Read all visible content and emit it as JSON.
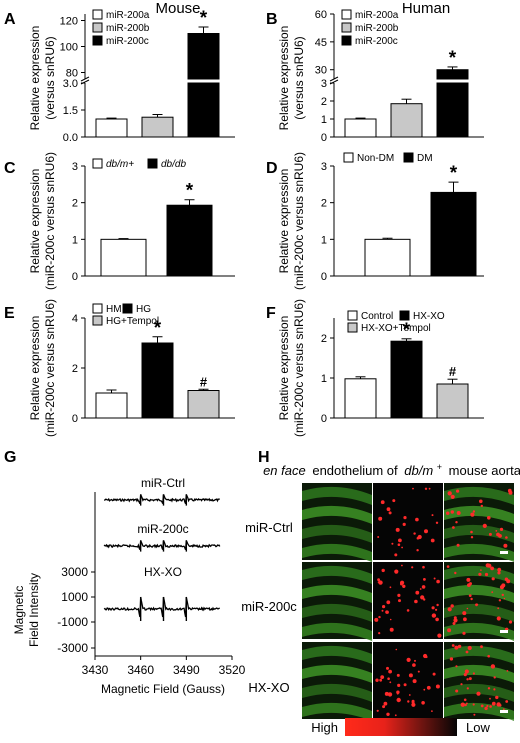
{
  "columns": {
    "left": "Mouse",
    "right": "Human"
  },
  "micro": {
    "title_prefix": "en face",
    "title_rest": "endothelium of",
    "title_italic": "db/m",
    "title_sup": "+",
    "title_suffix": "mouse aorta",
    "rows": [
      "miR-Ctrl",
      "miR-200c",
      "HX-XO"
    ],
    "colorbar": {
      "high": "High",
      "low": "Low"
    }
  },
  "chart_data": [
    {
      "panel": "A",
      "type": "bar",
      "axis_break": true,
      "ylabel": "Relative expression (versus snRU6)",
      "categories": [
        "miR-200a",
        "miR-200b",
        "miR-200c"
      ],
      "values": [
        1.0,
        1.1,
        110
      ],
      "errors": [
        0.05,
        0.15,
        5
      ],
      "fills": [
        "#ffffff",
        "#c8c8c8",
        "#000000"
      ],
      "lower_ticks": [
        "0.0",
        "1.5",
        "3.0"
      ],
      "upper_ticks": [
        "80",
        "100",
        "120"
      ],
      "lower_ylim": [
        0,
        3
      ],
      "upper_ylim": [
        75,
        125
      ],
      "annotations": [
        "",
        "",
        "*"
      ]
    },
    {
      "panel": "B",
      "type": "bar",
      "axis_break": true,
      "ylabel": "Relative expression (versus snRU6)",
      "categories": [
        "miR-200a",
        "miR-200b",
        "miR-200c"
      ],
      "values": [
        1.0,
        1.85,
        30
      ],
      "errors": [
        0.05,
        0.25,
        1.5
      ],
      "fills": [
        "#ffffff",
        "#c8c8c8",
        "#000000"
      ],
      "lower_ticks": [
        "0",
        "1",
        "2",
        "3"
      ],
      "upper_ticks": [
        "30",
        "45",
        "60"
      ],
      "lower_ylim": [
        0,
        3
      ],
      "upper_ylim": [
        25,
        60
      ],
      "annotations": [
        "",
        "",
        "*"
      ]
    },
    {
      "panel": "C",
      "type": "bar",
      "ylabel": "Relative expression (miR-200c versus snRU6)",
      "categories": [
        "db/m+",
        "db/db"
      ],
      "values": [
        1.0,
        1.93
      ],
      "errors": [
        0.02,
        0.15
      ],
      "fills": [
        "#ffffff",
        "#000000"
      ],
      "ticks": [
        "0",
        "1",
        "2",
        "3"
      ],
      "ylim": [
        0,
        3
      ],
      "annotations": [
        "",
        "*"
      ]
    },
    {
      "panel": "D",
      "type": "bar",
      "ylabel": "Relative expression (miR-200c versus snRU6)",
      "categories": [
        "Non-DM",
        "DM"
      ],
      "values": [
        1.0,
        2.28
      ],
      "errors": [
        0.03,
        0.28
      ],
      "fills": [
        "#ffffff",
        "#000000"
      ],
      "ticks": [
        "0",
        "1",
        "2",
        "3"
      ],
      "ylim": [
        0,
        3
      ],
      "annotations": [
        "",
        "*"
      ]
    },
    {
      "panel": "E",
      "type": "bar",
      "ylabel": "Relative expression (miR-200c versus snRU6)",
      "categories": [
        "HM",
        "HG",
        "HG+Tempol"
      ],
      "values": [
        1.0,
        3.0,
        1.1
      ],
      "errors": [
        0.12,
        0.25,
        0.05
      ],
      "fills": [
        "#ffffff",
        "#000000",
        "#c8c8c8"
      ],
      "ticks": [
        "0",
        "2",
        "4"
      ],
      "ylim": [
        0,
        4
      ],
      "annotations": [
        "",
        "*",
        "#"
      ]
    },
    {
      "panel": "F",
      "type": "bar",
      "ylabel": "Relative expression (miR-200c versus snRU6)",
      "categories": [
        "Control",
        "HX-XO",
        "HX-XO+Tempol"
      ],
      "values": [
        0.98,
        1.92,
        0.85
      ],
      "errors": [
        0.05,
        0.06,
        0.12
      ],
      "fills": [
        "#ffffff",
        "#000000",
        "#c8c8c8"
      ],
      "ticks": [
        "0",
        "1",
        "2"
      ],
      "ylim": [
        0,
        2.5
      ],
      "annotations": [
        "",
        "*",
        "#"
      ]
    },
    {
      "panel": "G",
      "type": "line",
      "traces": [
        "miR-Ctrl",
        "miR-200c",
        "HX-XO"
      ],
      "peaks_gauss": [
        3460,
        3475,
        3490
      ],
      "peak_amplitude_mir_ctrl": 700,
      "peak_amplitude_mir_200c": 700,
      "peak_amplitude_hx_xo": 1500,
      "ylabel": "Magnetic Field Intensity",
      "xlabel": "Magnetic Field (Gauss)",
      "xticks": [
        "3430",
        "3460",
        "3490",
        "3520"
      ],
      "yticks": [
        "3000",
        "1000",
        "-1000",
        "-3000"
      ],
      "xlim": [
        3430,
        3520
      ],
      "ylim": [
        -3000,
        3000
      ]
    }
  ]
}
